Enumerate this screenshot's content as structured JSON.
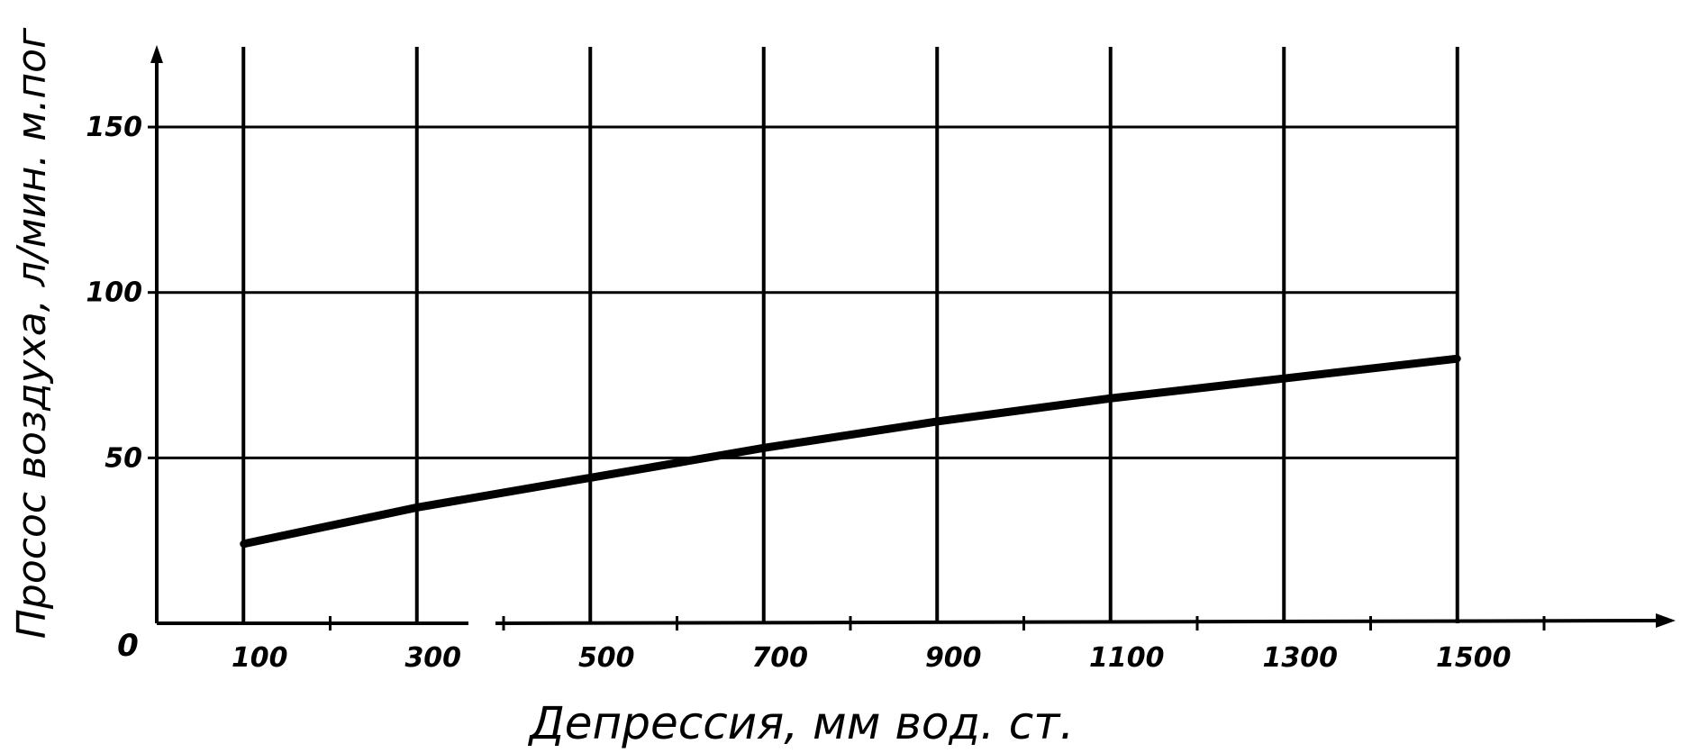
{
  "chart_data": {
    "type": "line",
    "xlabel": "Депрессия,  мм вод. ст.",
    "ylabel": "Просос воздуха, л/мин. м.пог",
    "origin_label": "0",
    "x_ticks": [
      100,
      300,
      500,
      700,
      900,
      1100,
      1300,
      1500
    ],
    "y_ticks": [
      50,
      100,
      150
    ],
    "xlim": [
      0,
      1700
    ],
    "ylim": [
      0,
      170
    ],
    "grid": true,
    "series": [
      {
        "x": [
          100,
          300,
          500,
          700,
          900,
          1100,
          1300,
          1500
        ],
        "y": [
          24,
          35,
          44,
          53,
          61,
          68,
          74,
          80
        ]
      }
    ]
  }
}
